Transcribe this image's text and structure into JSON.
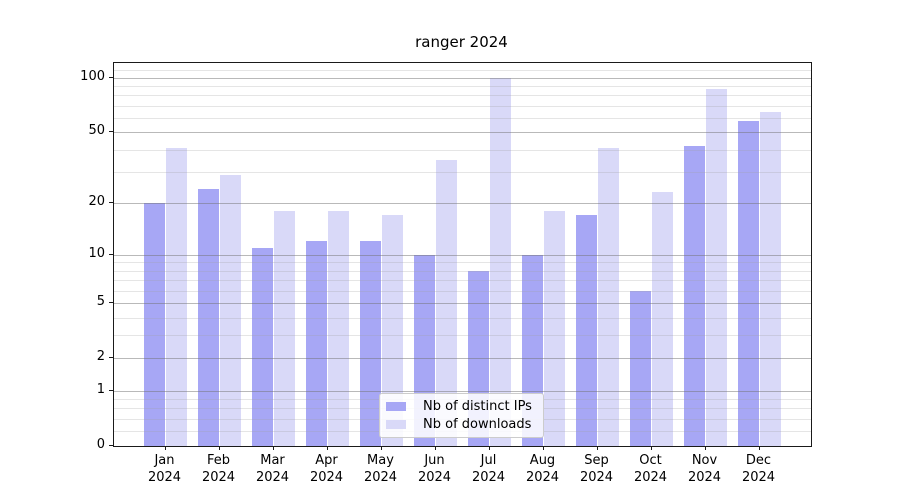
{
  "title": "ranger 2024",
  "chart_data": {
    "type": "bar",
    "title": "ranger 2024",
    "categories": [
      "Jan 2024",
      "Feb 2024",
      "Mar 2024",
      "Apr 2024",
      "May 2024",
      "Jun 2024",
      "Jul 2024",
      "Aug 2024",
      "Sep 2024",
      "Oct 2024",
      "Nov 2024",
      "Dec 2024"
    ],
    "series": [
      {
        "name": "Nb of distinct IPs",
        "color": "#a7a7f5",
        "values": [
          20,
          24,
          11,
          12,
          12,
          10,
          8,
          10,
          17,
          6,
          42,
          58
        ]
      },
      {
        "name": "Nb of downloads",
        "color": "#d9d9f8",
        "values": [
          41,
          29,
          18,
          18,
          17,
          35,
          100,
          18,
          41,
          23,
          87,
          65
        ]
      }
    ],
    "xlabel": "",
    "ylabel": "",
    "yscale": "log1p",
    "ylim": [
      0,
      120
    ],
    "yticks": [
      0,
      1,
      2,
      5,
      10,
      20,
      50,
      100
    ],
    "yticks_minor": [
      0.2,
      0.4,
      0.6,
      0.8,
      3,
      4,
      6,
      7,
      8,
      9,
      30,
      40,
      60,
      70,
      80,
      90,
      110
    ],
    "grid": true,
    "grid_major_color": "#b0b0b0",
    "grid_minor_color": "#e4e4e4",
    "legend_position": "lower center",
    "axis_color": "#1a1a1a"
  }
}
